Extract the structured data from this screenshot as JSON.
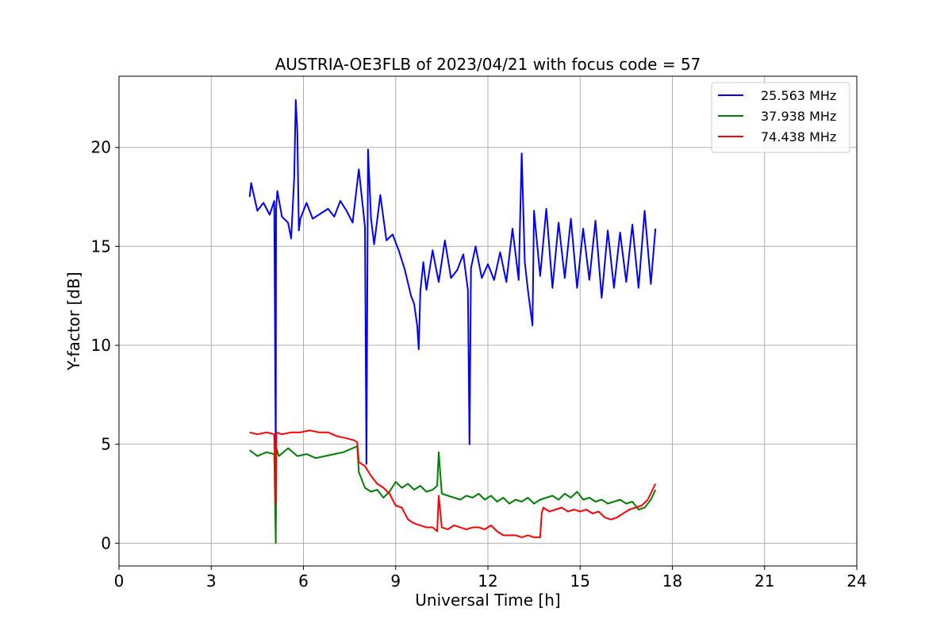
{
  "chart_data": {
    "type": "line",
    "title": "AUSTRIA-OE3FLB of 2023/04/21 with focus code = 57",
    "xlabel": "Universal Time [h]",
    "ylabel": "Y-factor [dB]",
    "xlim": [
      0,
      24
    ],
    "ylim": [
      -1.15,
      23.6
    ],
    "xticks": [
      0,
      3,
      6,
      9,
      12,
      15,
      18,
      21,
      24
    ],
    "yticks": [
      0,
      5,
      10,
      15,
      20
    ],
    "grid": true,
    "legend_position": "top-right",
    "series": [
      {
        "name": "25.563 MHz",
        "color": "#0000ff",
        "x": [
          4.25,
          4.3,
          4.5,
          4.7,
          4.9,
          5.05,
          5.1,
          5.11,
          5.15,
          5.3,
          5.5,
          5.6,
          5.7,
          5.75,
          5.8,
          5.85,
          5.9,
          6.1,
          6.3,
          6.5,
          6.8,
          7.0,
          7.2,
          7.4,
          7.6,
          7.8,
          8.0,
          8.05,
          8.1,
          8.2,
          8.3,
          8.5,
          8.7,
          8.9,
          9.1,
          9.3,
          9.5,
          9.6,
          9.7,
          9.75,
          9.8,
          9.9,
          10.0,
          10.2,
          10.4,
          10.6,
          10.8,
          11.0,
          11.2,
          11.35,
          11.4,
          11.45,
          11.6,
          11.8,
          12.0,
          12.2,
          12.4,
          12.6,
          12.8,
          13.0,
          13.1,
          13.2,
          13.3,
          13.45,
          13.5,
          13.7,
          13.9,
          14.1,
          14.3,
          14.5,
          14.7,
          14.9,
          15.1,
          15.3,
          15.5,
          15.7,
          15.9,
          16.1,
          16.3,
          16.5,
          16.7,
          16.9,
          17.1,
          17.3,
          17.45
        ],
        "y": [
          17.5,
          18.2,
          16.8,
          17.2,
          16.6,
          17.3,
          4.2,
          16.9,
          17.8,
          16.5,
          16.2,
          15.4,
          18.5,
          22.4,
          20.8,
          15.8,
          16.4,
          17.2,
          16.4,
          16.6,
          16.9,
          16.5,
          17.3,
          16.8,
          16.2,
          18.9,
          16.0,
          4.0,
          19.9,
          16.4,
          15.1,
          17.6,
          15.3,
          15.6,
          14.8,
          13.8,
          12.5,
          12.1,
          11.0,
          9.8,
          12.7,
          14.2,
          12.8,
          14.8,
          13.2,
          15.3,
          13.4,
          13.8,
          14.6,
          12.8,
          5.0,
          13.9,
          15.0,
          13.4,
          14.1,
          13.3,
          14.7,
          13.2,
          15.9,
          13.3,
          19.7,
          14.2,
          12.8,
          11.0,
          16.8,
          13.5,
          16.9,
          12.9,
          16.2,
          13.4,
          16.4,
          12.9,
          15.9,
          13.3,
          16.3,
          12.4,
          15.8,
          12.9,
          15.7,
          13.2,
          16.1,
          12.9,
          16.8,
          13.1,
          15.9
        ]
      },
      {
        "name": "37.938 MHz",
        "color": "#008000",
        "x": [
          4.25,
          4.5,
          4.8,
          5.05,
          5.1,
          5.12,
          5.2,
          5.5,
          5.8,
          6.1,
          6.4,
          6.7,
          7.0,
          7.3,
          7.6,
          7.75,
          7.8,
          8.0,
          8.2,
          8.4,
          8.6,
          8.8,
          9.0,
          9.2,
          9.4,
          9.6,
          9.8,
          10.0,
          10.2,
          10.35,
          10.4,
          10.5,
          10.7,
          10.9,
          11.1,
          11.3,
          11.5,
          11.7,
          11.9,
          12.1,
          12.3,
          12.5,
          12.7,
          12.9,
          13.1,
          13.3,
          13.5,
          13.7,
          13.9,
          14.1,
          14.3,
          14.5,
          14.7,
          14.9,
          15.1,
          15.3,
          15.5,
          15.7,
          15.9,
          16.1,
          16.3,
          16.5,
          16.7,
          16.9,
          17.1,
          17.3,
          17.45
        ],
        "y": [
          4.7,
          4.4,
          4.6,
          4.5,
          0.0,
          4.8,
          4.4,
          4.8,
          4.4,
          4.5,
          4.3,
          4.4,
          4.5,
          4.6,
          4.8,
          4.9,
          3.6,
          2.8,
          2.6,
          2.7,
          2.3,
          2.6,
          3.1,
          2.8,
          3.0,
          2.7,
          2.9,
          2.6,
          2.7,
          2.9,
          4.6,
          2.5,
          2.4,
          2.3,
          2.2,
          2.4,
          2.3,
          2.5,
          2.2,
          2.4,
          2.1,
          2.3,
          2.0,
          2.2,
          2.1,
          2.3,
          2.0,
          2.2,
          2.3,
          2.4,
          2.2,
          2.5,
          2.3,
          2.6,
          2.2,
          2.3,
          2.1,
          2.2,
          2.0,
          2.1,
          2.2,
          2.0,
          2.1,
          1.7,
          1.8,
          2.2,
          2.7
        ]
      },
      {
        "name": "74.438 MHz",
        "color": "#ff0000",
        "x": [
          4.25,
          4.5,
          4.8,
          5.05,
          5.1,
          5.12,
          5.3,
          5.6,
          5.9,
          6.2,
          6.5,
          6.8,
          7.1,
          7.4,
          7.65,
          7.75,
          7.8,
          8.0,
          8.2,
          8.4,
          8.6,
          8.8,
          9.0,
          9.2,
          9.4,
          9.6,
          9.8,
          10.0,
          10.2,
          10.35,
          10.4,
          10.5,
          10.7,
          10.9,
          11.1,
          11.3,
          11.5,
          11.7,
          11.9,
          12.1,
          12.3,
          12.5,
          12.7,
          12.9,
          13.1,
          13.3,
          13.5,
          13.7,
          13.75,
          13.8,
          14.0,
          14.2,
          14.4,
          14.6,
          14.8,
          15.0,
          15.2,
          15.4,
          15.6,
          15.8,
          16.0,
          16.2,
          16.4,
          16.6,
          16.8,
          17.0,
          17.2,
          17.45
        ],
        "y": [
          5.6,
          5.5,
          5.6,
          5.5,
          2.0,
          5.6,
          5.5,
          5.6,
          5.6,
          5.7,
          5.6,
          5.6,
          5.4,
          5.3,
          5.2,
          5.1,
          4.1,
          3.9,
          3.4,
          3.0,
          2.8,
          2.5,
          1.9,
          1.8,
          1.2,
          1.0,
          0.9,
          0.8,
          0.8,
          0.6,
          2.4,
          0.8,
          0.7,
          0.9,
          0.8,
          0.7,
          0.8,
          0.8,
          0.7,
          0.9,
          0.6,
          0.4,
          0.4,
          0.4,
          0.3,
          0.4,
          0.3,
          0.3,
          1.5,
          1.8,
          1.6,
          1.7,
          1.8,
          1.6,
          1.7,
          1.6,
          1.7,
          1.5,
          1.6,
          1.3,
          1.2,
          1.3,
          1.5,
          1.7,
          1.8,
          1.9,
          2.2,
          3.0
        ]
      }
    ]
  }
}
